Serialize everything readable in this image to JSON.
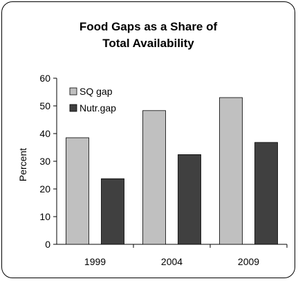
{
  "chart_data": {
    "type": "bar",
    "title_line1": "Food Gaps as a Share of",
    "title_line2": "Total Availability",
    "ylabel": "Percent",
    "xlabel": "",
    "categories": [
      "1999",
      "2004",
      "2009"
    ],
    "ylim": [
      0,
      60
    ],
    "yticks": [
      0,
      10,
      20,
      30,
      40,
      50,
      60
    ],
    "series": [
      {
        "name": "SQ gap",
        "values": [
          38.5,
          48.3,
          53.0
        ],
        "color": "#c0c0c0"
      },
      {
        "name": "Nutr.gap",
        "values": [
          23.7,
          32.4,
          36.8
        ],
        "color": "#404040"
      }
    ],
    "legend_position": "top-left",
    "grid": false
  }
}
